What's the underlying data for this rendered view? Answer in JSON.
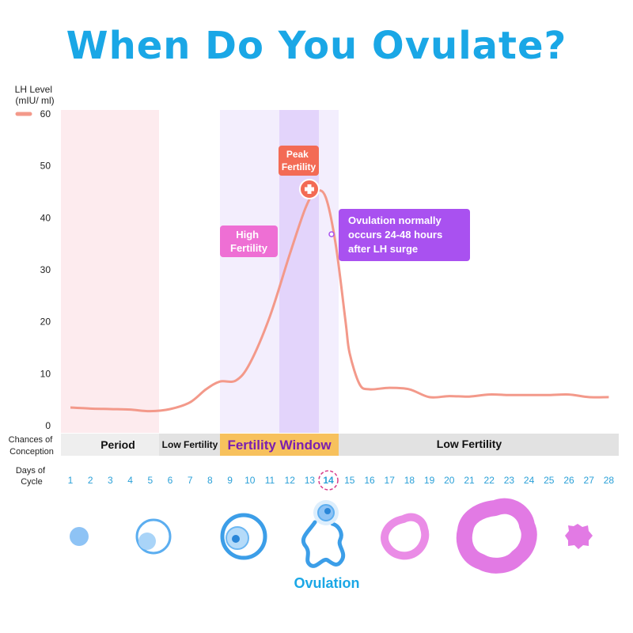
{
  "title": "When Do You Ovulate?",
  "colors": {
    "title": "#1aa7e6",
    "lh_line": "#f3998a",
    "period_band": "#fdebee",
    "fertility_band": "#f3eefd",
    "peak_band": "#e3d4fb",
    "high_fertility_box": "#ee6fd4",
    "peak_fertility_box": "#f36b55",
    "ovulation_box": "#a951f0",
    "fertility_window_bar": "#f7c15d",
    "low_fertility_bar": "#e2e2e2",
    "day_number": "#2aa0d8",
    "day14_ring": "#d83b8a"
  },
  "chart_data": {
    "type": "line",
    "ylabel": "LH Level\n(mIU/ ml)",
    "ylim": [
      0,
      60
    ],
    "y_ticks": [
      0,
      10,
      20,
      30,
      40,
      50,
      60
    ],
    "grid": false,
    "legend": "top-left",
    "x_label": "Days of\nCycle",
    "x": [
      1,
      2,
      3,
      4,
      5,
      6,
      7,
      8,
      9,
      10,
      11,
      12,
      13,
      14,
      15,
      16,
      17,
      18,
      19,
      20,
      21,
      22,
      23,
      24,
      25,
      26,
      27,
      28
    ],
    "series": [
      {
        "name": "",
        "x": [
          1,
          2,
          3,
          4,
          5,
          6,
          7,
          7.8,
          8.5,
          9.3,
          10,
          11,
          12,
          12.8,
          13.3,
          13.8,
          14.3,
          14.8,
          15,
          15.5,
          16,
          17,
          18,
          19,
          20,
          21,
          22,
          23,
          24,
          25,
          26,
          27,
          28
        ],
        "values": [
          3.5,
          3.3,
          3.2,
          3.1,
          2.8,
          3.2,
          4.5,
          7,
          8.5,
          8.7,
          12,
          21,
          33,
          42,
          45,
          44,
          35,
          20,
          14,
          8,
          7,
          7.3,
          7,
          5.5,
          5.7,
          5.6,
          6,
          5.9,
          5.9,
          5.9,
          6,
          5.5,
          5.5
        ]
      }
    ],
    "regions": [
      {
        "label": "Period",
        "from": 1,
        "to": 5
      },
      {
        "label": "Low Fertility",
        "from": 6,
        "to": 8
      },
      {
        "label": "Fertility Window",
        "from": 9,
        "to": 14
      },
      {
        "label": "Low Fertility",
        "from": 15,
        "to": 28
      }
    ],
    "chances_label": "Chances of\nConception",
    "annotations": {
      "high_fertility": "High\nFertility",
      "peak_fertility": "Peak\nFertility",
      "ovulation_note": "Ovulation normally\noccurs 24-48 hours\nafter LH surge"
    },
    "highlight_day": 14
  },
  "follicle_stages_label": "Ovulation",
  "icons": [
    "small-follicle-icon",
    "growing-follicle-icon",
    "mature-follicle-icon",
    "ovulating-follicle-icon",
    "corpus-luteum-icon",
    "large-corpus-luteum-icon",
    "corpus-albicans-icon"
  ]
}
